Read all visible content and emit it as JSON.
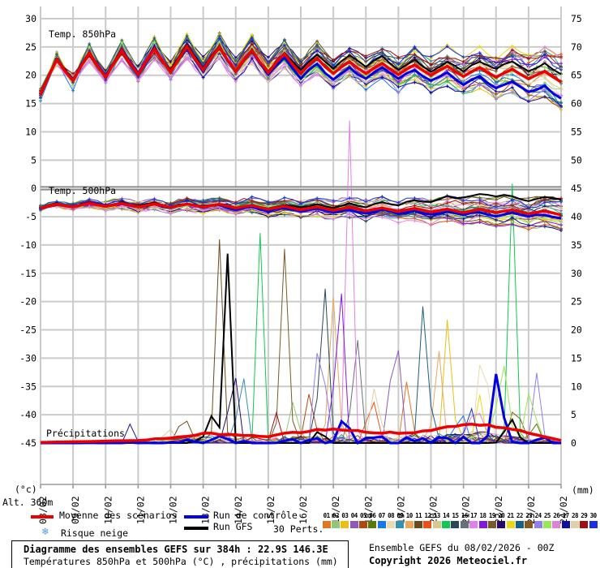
{
  "header": {
    "title": "Diagramme des ensembles GEFS sur 384h : 22.9S 146.3E",
    "subtitle": "Températures 850hPa et 500hPa (°C) , précipitations (mm)",
    "run_info": "Ensemble GEFS du 08/02/2026 - 00Z",
    "copyright": "Copyright 2026 Meteociel.fr"
  },
  "labels": {
    "panel_t850": "Temp. 850hPa",
    "panel_t500": "Temp. 500hPa",
    "panel_precip": "Précipitations",
    "left_unit": "(°c)",
    "right_unit": "(mm)",
    "altitude": "Alt. 360m"
  },
  "legend": {
    "mean": "Moyenne des scénarios",
    "control": "Run de contrôle",
    "gfs": "Run GFS",
    "perts": "30 Perts.",
    "snow": "Risque neige",
    "snow_icon": "❄"
  },
  "colors": {
    "mean": "#EE0000",
    "control": "#0000E0",
    "gfs": "#000000",
    "grid": "#CBCBCB",
    "zero_line": "#8C8C8C",
    "axis": "#999999",
    "text": "#000000"
  },
  "chart_data": {
    "type": "line",
    "description": "GEFS ensemble meteogram: 850hPa temperature, 500hPa temperature and precipitation, 30 perturbations + mean + control + GFS, 384h from 08/02 00Z, 6h step",
    "x_dates": [
      "08/02",
      "09/02",
      "10/02",
      "11/02",
      "12/02",
      "13/02",
      "14/02",
      "15/02",
      "16/02",
      "17/02",
      "18/02",
      "19/02",
      "20/02",
      "21/02",
      "22/02",
      "23/02",
      "24/02"
    ],
    "left_axis": {
      "min": -45,
      "max": 30,
      "step": 5,
      "ticks": [
        "30",
        "25",
        "20",
        "15",
        "10",
        "5",
        "0",
        "-5",
        "-10",
        "-15",
        "-20",
        "-25",
        "-30",
        "-35",
        "-40",
        "-45"
      ]
    },
    "right_axis": {
      "min": 0,
      "max": 75,
      "step": 5,
      "ticks": [
        "75",
        "70",
        "65",
        "60",
        "55",
        "50",
        "45",
        "40",
        "35",
        "30",
        "25",
        "20",
        "15",
        "10",
        "5",
        "0"
      ]
    },
    "hours_span": 384,
    "points_per_day": 4,
    "diurnal_pattern": [
      -0.9,
      0.1,
      1.0,
      0.0
    ],
    "t850": {
      "mean_base": [
        19.0,
        21.3,
        21.8,
        22.2,
        22.6,
        23.0,
        22.6,
        22.2,
        21.8,
        21.4,
        21.2,
        21.0,
        20.8,
        20.6,
        20.4,
        20.1,
        19.6
      ],
      "diurnal_amp": [
        2.8,
        2.5,
        2.4,
        2.3,
        2.3,
        2.3,
        2.1,
        1.9,
        1.7,
        1.2,
        1.0,
        1.0,
        0.9,
        0.9,
        0.8,
        0.8,
        0.9
      ],
      "spread": [
        0.8,
        1.0,
        1.2,
        1.4,
        1.5,
        1.7,
        1.9,
        2.0,
        2.2,
        2.4,
        2.5,
        2.7,
        2.9,
        3.1,
        3.4,
        3.8,
        4.3
      ],
      "control_offset": [
        0,
        0,
        0.2,
        0.3,
        0,
        -0.2,
        0,
        -0.4,
        -0.8,
        -1.2,
        -1.0,
        -0.6,
        -1.0,
        -1.4,
        -1.8,
        -2.4,
        -3.0
      ],
      "gfs_offset": [
        0,
        0.2,
        0,
        -0.2,
        0.4,
        0.4,
        0,
        0.2,
        0.5,
        0.9,
        1.3,
        1.0,
        0.6,
        1.0,
        1.4,
        1.4,
        1.3
      ]
    },
    "t500": {
      "mean_base": [
        -3.2,
        -3.0,
        -2.9,
        -3.0,
        -3.1,
        -3.0,
        -3.2,
        -3.4,
        -3.5,
        -3.6,
        -3.7,
        -3.8,
        -3.9,
        -4.0,
        -4.0,
        -4.2,
        -4.4
      ],
      "diurnal_amp": [
        0.3,
        0.3,
        0.3,
        0.3,
        0.3,
        0.3,
        0.3,
        0.3,
        0.3,
        0.3,
        0.3,
        0.3,
        0.3,
        0.3,
        0.3,
        0.3,
        0.3
      ],
      "spread": [
        0.5,
        0.6,
        0.7,
        0.8,
        0.9,
        1.0,
        1.1,
        1.2,
        1.3,
        1.5,
        1.6,
        1.8,
        1.9,
        2.1,
        2.2,
        2.4,
        2.6
      ],
      "control_offset": [
        0,
        0,
        0.1,
        0,
        -0.1,
        0,
        -0.2,
        -0.3,
        -0.2,
        -0.3,
        -0.4,
        -0.3,
        -0.5,
        -0.4,
        -0.6,
        -0.5,
        -0.7
      ],
      "gfs_offset": [
        0,
        0.1,
        0,
        0.2,
        0,
        0.1,
        0,
        0.2,
        0.4,
        0.5,
        0.8,
        1.2,
        1.8,
        2.6,
        3.0,
        2.2,
        2.8
      ]
    },
    "precip": {
      "mean_daily_mm": [
        0.1,
        0.2,
        0.3,
        0.5,
        1.2,
        2.2,
        2.0,
        1.6,
        2.4,
        2.8,
        2.2,
        2.4,
        2.8,
        3.2,
        2.8,
        1.6,
        0.4
      ],
      "control_events": [
        [
          5.6,
          2.5,
          0.3
        ],
        [
          9.3,
          4,
          0.4
        ],
        [
          14.05,
          15.5,
          0.4
        ],
        [
          15.4,
          2,
          0.3
        ]
      ],
      "gfs_events": [
        [
          4.9,
          4,
          0.2
        ],
        [
          5.3,
          8,
          0.2
        ],
        [
          5.7,
          50,
          0.25
        ],
        [
          8.6,
          4,
          0.3
        ],
        [
          14.45,
          5,
          0.5
        ]
      ],
      "member_events": [
        [
          11,
          4.4,
          8,
          0.3
        ],
        [
          11,
          5.5,
          36,
          0.3
        ],
        [
          19,
          7.5,
          34,
          0.35
        ],
        [
          14,
          6.75,
          37,
          0.25
        ],
        [
          14,
          14.5,
          45,
          0.3
        ],
        [
          15,
          8.7,
          36,
          0.35
        ],
        [
          16,
          9.7,
          24,
          0.35
        ],
        [
          17,
          9.5,
          57,
          0.3
        ],
        [
          18,
          9.15,
          77,
          0.22
        ],
        [
          4,
          10.9,
          30,
          0.35
        ],
        [
          3,
          12.55,
          30,
          0.3
        ],
        [
          10,
          9.0,
          25,
          0.35
        ],
        [
          10,
          12.2,
          22,
          0.3
        ],
        [
          22,
          11.8,
          30,
          0.35
        ],
        [
          24,
          8.6,
          32,
          0.3
        ],
        [
          24,
          15.3,
          18,
          0.25
        ],
        [
          20,
          5.9,
          28,
          0.25
        ],
        [
          8,
          13.6,
          25,
          0.35
        ],
        [
          25,
          14.2,
          16,
          0.5
        ],
        [
          25,
          15.1,
          21,
          0.25
        ],
        [
          1,
          11.3,
          15,
          0.3
        ],
        [
          28,
          10.3,
          12,
          0.35
        ],
        [
          12,
          10.15,
          18,
          0.25
        ],
        [
          9,
          6.2,
          15,
          0.35
        ],
        [
          5,
          8.3,
          12,
          0.3
        ],
        [
          2,
          7.8,
          10,
          0.3
        ],
        [
          13,
          3.9,
          6,
          0.25
        ],
        [
          27,
          2.8,
          5,
          0.25
        ],
        [
          30,
          13.2,
          8,
          0.35
        ],
        [
          26,
          13.4,
          10,
          0.3
        ],
        [
          23,
          14.6,
          10,
          0.35
        ],
        [
          29,
          7.2,
          8,
          0.25
        ],
        [
          7,
          12.9,
          10,
          0.3
        ],
        [
          6,
          15.15,
          10,
          0.2
        ],
        [
          21,
          13.5,
          8,
          0.25
        ]
      ]
    },
    "pert_labels": [
      "01",
      "02",
      "03",
      "04",
      "05",
      "06",
      "07",
      "08",
      "09",
      "10",
      "11",
      "12",
      "13",
      "14",
      "15",
      "16",
      "17",
      "18",
      "19",
      "20",
      "21",
      "22",
      "23",
      "24",
      "25",
      "26",
      "27",
      "28",
      "29",
      "30"
    ],
    "pert_colors": [
      "#E07820",
      "#90C878",
      "#E8C018",
      "#9058B8",
      "#B04810",
      "#5A7A08",
      "#1878E8",
      "#E8DCB0",
      "#3890B0",
      "#E8A860",
      "#6B4A1F",
      "#E85018",
      "#D8C890",
      "#10C850",
      "#284858",
      "#687078",
      "#E080E8",
      "#8018E0",
      "#7A5A28",
      "#280868",
      "#E8D818",
      "#186080",
      "#885820",
      "#9080E8",
      "#98E858",
      "#E080D8",
      "#1010A0",
      "#E0D0A8",
      "#A01010",
      "#1830E0"
    ]
  }
}
